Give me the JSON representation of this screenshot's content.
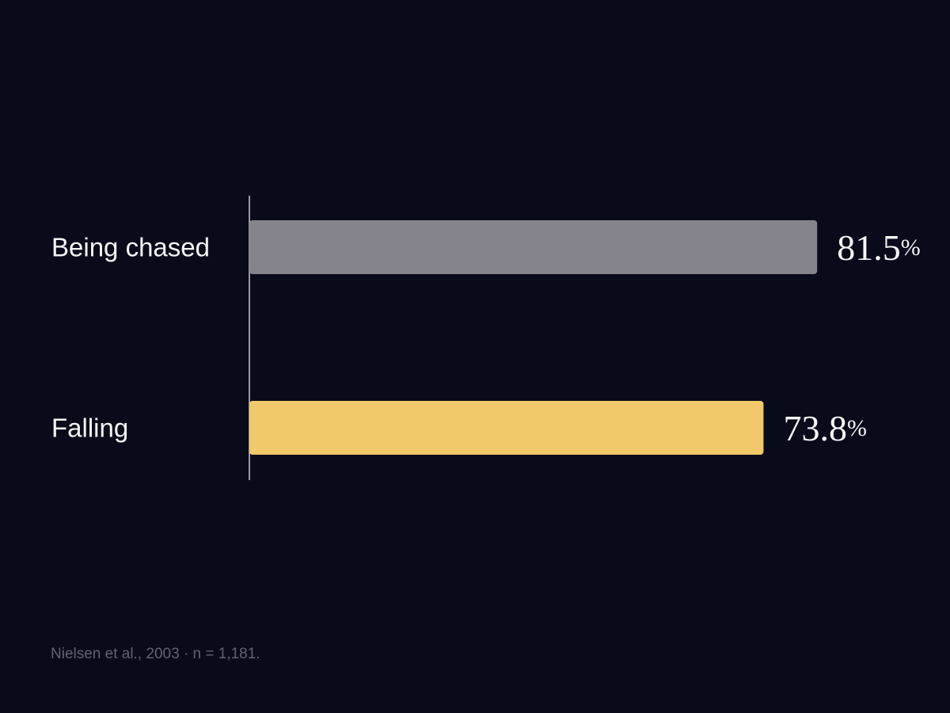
{
  "chart_data": {
    "type": "bar",
    "orientation": "horizontal",
    "categories": [
      "Being chased",
      "Falling"
    ],
    "values": [
      81.5,
      73.8
    ],
    "value_labels": [
      "81.5",
      "73.8"
    ],
    "unit": "%",
    "colors": [
      "#85848c",
      "#f1c96a"
    ],
    "xlim": [
      0,
      100
    ],
    "grid": false,
    "legend": "none",
    "title": "",
    "xlabel": "",
    "ylabel": ""
  },
  "source": "Nielsen et al., 2003 · n = 1,181."
}
